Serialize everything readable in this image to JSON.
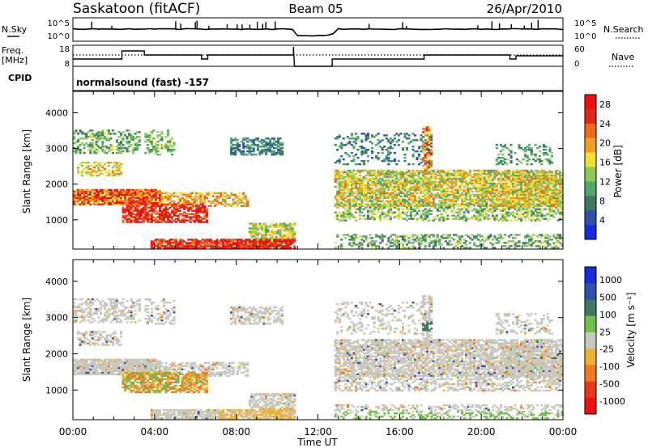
{
  "header": {
    "station": "Saskatoon (fitACF)",
    "beam": "Beam 05",
    "date": "26/Apr/2010",
    "cpid": "normalsound (fast) -157"
  },
  "side_labels": {
    "nsky": "N.Sky",
    "freq": "Freq.",
    "freq_unit": "[MHz]",
    "cpid_label": "CPID",
    "nsearch": "N.Search",
    "nave": "Nave"
  },
  "strip_ticks": {
    "nsky_left": [
      "10^5",
      "10^0"
    ],
    "nsky_right": [
      "10^5",
      "10^0"
    ],
    "freq_left": [
      "18",
      "8"
    ],
    "freq_right": [
      "60",
      "0"
    ]
  },
  "colors": {
    "power": [
      "#1a2bdc",
      "#2f4fa8",
      "#3f7a60",
      "#4fa868",
      "#8ec85a",
      "#f0e030",
      "#f0a020",
      "#f06818",
      "#e02818",
      "#ee1010"
    ],
    "velocity": [
      "#1a2bdc",
      "#2f4fa8",
      "#3f7a60",
      "#6fbf4a",
      "#c8c8c0",
      "#f0b030",
      "#f07820",
      "#e83818",
      "#ee1010"
    ]
  },
  "chart_data": [
    {
      "type": "heatmap",
      "title": "Power",
      "ylabel": "Slant Range [km]",
      "xlabel": "Time UT",
      "x_ticks": [
        "00:00",
        "04:00",
        "08:00",
        "12:00",
        "16:00",
        "20:00",
        "00:00"
      ],
      "y_ticks": [
        1000,
        2000,
        3000,
        4000
      ],
      "ylim": [
        180,
        4600
      ],
      "xlim_hours": [
        0,
        24
      ],
      "colorbar_label": "Power [dB]",
      "colorbar_ticks": [
        4,
        8,
        12,
        16,
        20,
        24,
        28
      ],
      "colorbar_range": [
        0,
        30
      ],
      "data_gap_hours": [
        10.8,
        12.7
      ]
    },
    {
      "type": "heatmap",
      "title": "Velocity",
      "ylabel": "Slant Range [km]",
      "xlabel": "Time UT",
      "x_ticks": [
        "00:00",
        "04:00",
        "08:00",
        "12:00",
        "16:00",
        "20:00",
        "00:00"
      ],
      "y_ticks": [
        1000,
        2000,
        3000,
        4000
      ],
      "ylim": [
        180,
        4600
      ],
      "xlim_hours": [
        0,
        24
      ],
      "colorbar_label": "Velocity [m s⁻¹]",
      "colorbar_ticks": [
        "1000",
        "500",
        "100",
        "25",
        "-25",
        "-100",
        "-500",
        "-1000"
      ],
      "data_gap_hours": [
        10.8,
        12.7
      ]
    }
  ]
}
